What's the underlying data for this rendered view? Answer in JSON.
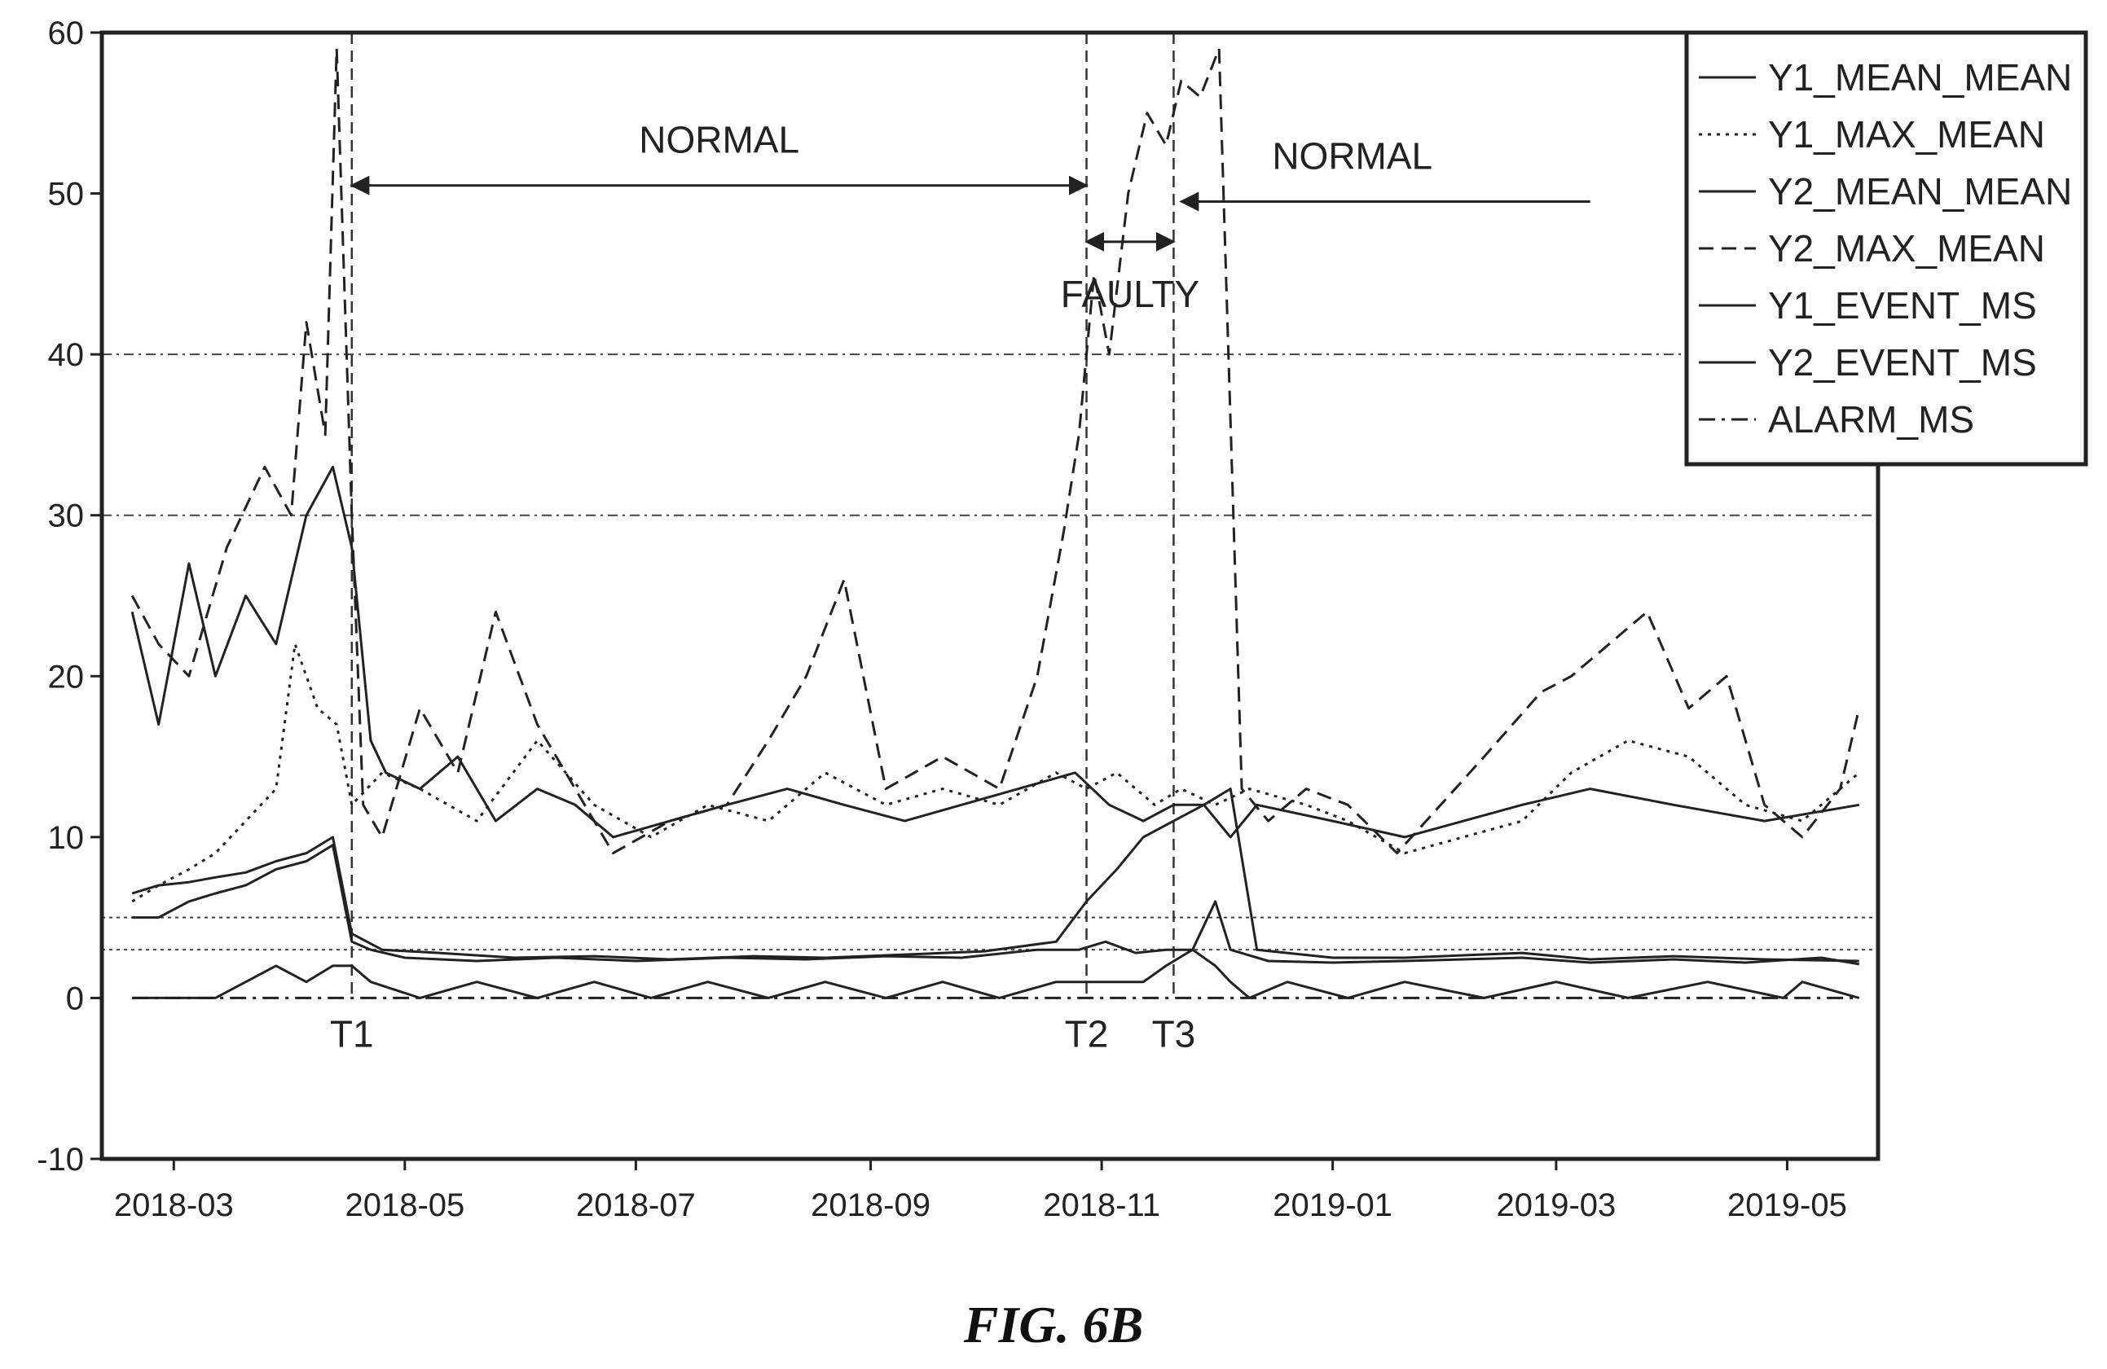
{
  "caption": "FIG. 6B",
  "chart_data": {
    "type": "line",
    "title": "",
    "xlabel": "",
    "ylabel": "",
    "ylim": [
      -10,
      60
    ],
    "yticks": [
      -10,
      0,
      10,
      20,
      30,
      40,
      50,
      60
    ],
    "xticks": [
      "2018-03",
      "2018-05",
      "2018-07",
      "2018-09",
      "2018-11",
      "2019-01",
      "2019-03",
      "2019-05"
    ],
    "xlim": [
      "2018-02-10",
      "2019-05-25"
    ],
    "grid": "horizontal dash-dot at 30 and 40; dotted threshold lines at 3 and 5",
    "legend_position": "top-right",
    "legend": [
      "Y1_MEAN_MEAN",
      "Y1_MAX_MEAN",
      "Y2_MEAN_MEAN",
      "Y2_MAX_MEAN",
      "Y1_EVENT_MS",
      "Y2_EVENT_MS",
      "ALARM_MS"
    ],
    "threshold_lines": [
      5,
      3
    ],
    "markers": [
      {
        "label": "T1",
        "date": "2018-04-17"
      },
      {
        "label": "T2",
        "date": "2018-10-28"
      },
      {
        "label": "T3",
        "date": "2018-11-20"
      }
    ],
    "annotations": [
      {
        "text": "NORMAL",
        "from": "2018-04-17",
        "to": "2018-10-28",
        "y": 50.5
      },
      {
        "text": "FAULTY",
        "from": "2018-10-28",
        "to": "2018-11-20",
        "y": 47
      },
      {
        "text": "NORMAL",
        "from": "2018-11-22",
        "to": "2019-03-10",
        "y": 49.5
      }
    ],
    "series": [
      {
        "name": "Y1_MEAN_MEAN",
        "style": "solid",
        "x": [
          "2018-02-18",
          "2018-02-25",
          "2018-03-05",
          "2018-03-12",
          "2018-03-20",
          "2018-03-28",
          "2018-04-05",
          "2018-04-12",
          "2018-04-17",
          "2018-04-22",
          "2018-05-01",
          "2018-05-20",
          "2018-06-10",
          "2018-07-01",
          "2018-07-25",
          "2018-08-15",
          "2018-09-05",
          "2018-09-25",
          "2018-10-15",
          "2018-10-26",
          "2018-11-02",
          "2018-11-10",
          "2018-11-18",
          "2018-11-25",
          "2018-12-01",
          "2018-12-05",
          "2018-12-15",
          "2019-01-01",
          "2019-01-20",
          "2019-02-20",
          "2019-03-10",
          "2019-04-01",
          "2019-04-20",
          "2019-05-10",
          "2019-05-20"
        ],
        "y": [
          5,
          5,
          6,
          6.5,
          7,
          8,
          8.5,
          9.5,
          3.5,
          3,
          2.5,
          2.3,
          2.5,
          2.3,
          2.5,
          2.4,
          2.6,
          2.5,
          3,
          3,
          3.5,
          2.8,
          3,
          3,
          6,
          3,
          2.3,
          2.2,
          2.3,
          2.5,
          2.2,
          2.4,
          2.2,
          2.5,
          2.1
        ]
      },
      {
        "name": "Y1_MAX_MEAN",
        "style": "dotted",
        "x": [
          "2018-02-18",
          "2018-02-25",
          "2018-03-05",
          "2018-03-12",
          "2018-03-20",
          "2018-03-28",
          "2018-04-02",
          "2018-04-08",
          "2018-04-13",
          "2018-04-17",
          "2018-04-25",
          "2018-05-05",
          "2018-05-20",
          "2018-06-05",
          "2018-06-20",
          "2018-07-05",
          "2018-07-20",
          "2018-08-05",
          "2018-08-20",
          "2018-09-05",
          "2018-09-20",
          "2018-10-05",
          "2018-10-20",
          "2018-10-28",
          "2018-11-05",
          "2018-11-15",
          "2018-11-22",
          "2018-12-01",
          "2018-12-10",
          "2018-12-25",
          "2019-01-05",
          "2019-01-20",
          "2019-02-20",
          "2019-03-05",
          "2019-03-20",
          "2019-04-05",
          "2019-04-20",
          "2019-05-05",
          "2019-05-20"
        ],
        "y": [
          6,
          7,
          8,
          9,
          11,
          13,
          22,
          18,
          17,
          12,
          14,
          13,
          11,
          16,
          12,
          10,
          12,
          11,
          14,
          12,
          13,
          12,
          14,
          13,
          14,
          12,
          13,
          12,
          13,
          12,
          11,
          9,
          11,
          14,
          16,
          15,
          12,
          11,
          14
        ]
      },
      {
        "name": "Y2_MEAN_MEAN",
        "style": "solid",
        "x": [
          "2018-02-18",
          "2018-02-25",
          "2018-03-05",
          "2018-03-12",
          "2018-03-20",
          "2018-03-28",
          "2018-04-05",
          "2018-04-12",
          "2018-04-17",
          "2018-04-25",
          "2018-05-10",
          "2018-05-30",
          "2018-06-20",
          "2018-07-10",
          "2018-08-01",
          "2018-08-20",
          "2018-09-10",
          "2018-10-01",
          "2018-10-20",
          "2018-10-28",
          "2018-11-05",
          "2018-11-12",
          "2018-11-20",
          "2018-11-28",
          "2018-12-05",
          "2018-12-12",
          "2019-01-01",
          "2019-01-20",
          "2019-02-20",
          "2019-03-10",
          "2019-04-01",
          "2019-04-25",
          "2019-05-20"
        ],
        "y": [
          6.5,
          7,
          7.2,
          7.5,
          7.8,
          8.5,
          9,
          10,
          4,
          3,
          2.8,
          2.5,
          2.6,
          2.4,
          2.6,
          2.5,
          2.7,
          2.9,
          3.5,
          6,
          8,
          10,
          11,
          12,
          13,
          3,
          2.5,
          2.5,
          2.8,
          2.4,
          2.6,
          2.4,
          2.3
        ]
      },
      {
        "name": "Y2_MAX_MEAN",
        "style": "dashed",
        "x": [
          "2018-02-18",
          "2018-02-25",
          "2018-03-05",
          "2018-03-15",
          "2018-03-25",
          "2018-04-01",
          "2018-04-05",
          "2018-04-10",
          "2018-04-13",
          "2018-04-17",
          "2018-04-20",
          "2018-04-25",
          "2018-05-05",
          "2018-05-15",
          "2018-05-25",
          "2018-06-05",
          "2018-06-15",
          "2018-06-25",
          "2018-07-10",
          "2018-07-25",
          "2018-08-05",
          "2018-08-15",
          "2018-08-25",
          "2018-09-05",
          "2018-09-20",
          "2018-10-05",
          "2018-10-15",
          "2018-10-22",
          "2018-10-26",
          "2018-10-30",
          "2018-11-03",
          "2018-11-08",
          "2018-11-13",
          "2018-11-18",
          "2018-11-22",
          "2018-11-27",
          "2018-12-02",
          "2018-12-08",
          "2018-12-15",
          "2018-12-25",
          "2019-01-05",
          "2019-01-18",
          "2019-02-10",
          "2019-02-25",
          "2019-03-05",
          "2019-03-15",
          "2019-03-25",
          "2019-04-05",
          "2019-04-15",
          "2019-04-25",
          "2019-05-05",
          "2019-05-15",
          "2019-05-20"
        ],
        "y": [
          25,
          22,
          20,
          28,
          33,
          30,
          42,
          35,
          59,
          30,
          12,
          10,
          18,
          14,
          24,
          17,
          13,
          9,
          11,
          12,
          16,
          20,
          26,
          13,
          15,
          13,
          20,
          29,
          35,
          45,
          40,
          50,
          55,
          53,
          57,
          56,
          59,
          13,
          11,
          13,
          12,
          9,
          15,
          19,
          20,
          22,
          24,
          18,
          20,
          12,
          10,
          13,
          18
        ]
      },
      {
        "name": "Y1_EVENT_MS",
        "style": "solid",
        "x": [
          "2018-02-18",
          "2018-02-25",
          "2018-03-05",
          "2018-03-12",
          "2018-03-20",
          "2018-03-28",
          "2018-04-05",
          "2018-04-12",
          "2018-04-17",
          "2018-04-22",
          "2018-04-26",
          "2018-05-05",
          "2018-05-15",
          "2018-05-25",
          "2018-06-05",
          "2018-06-15",
          "2018-06-25",
          "2018-07-10",
          "2018-07-25",
          "2018-08-10",
          "2018-08-25",
          "2018-09-10",
          "2018-09-25",
          "2018-10-10",
          "2018-10-25",
          "2018-11-03",
          "2018-11-12",
          "2018-11-20",
          "2018-11-28",
          "2018-12-05",
          "2018-12-12",
          "2019-01-01",
          "2019-01-20",
          "2019-02-20",
          "2019-03-10",
          "2019-04-01",
          "2019-04-25",
          "2019-05-20"
        ],
        "y": [
          24,
          17,
          27,
          20,
          25,
          22,
          30,
          33,
          28,
          16,
          14,
          13,
          15,
          11,
          13,
          12,
          10,
          11,
          12,
          13,
          12,
          11,
          12,
          13,
          14,
          12,
          11,
          12,
          12,
          10,
          12,
          11,
          10,
          12,
          13,
          12,
          11,
          12
        ]
      },
      {
        "name": "Y2_EVENT_MS",
        "style": "solid",
        "x": [
          "2018-02-18",
          "2018-03-01",
          "2018-03-12",
          "2018-03-20",
          "2018-03-28",
          "2018-04-05",
          "2018-04-12",
          "2018-04-17",
          "2018-04-22",
          "2018-05-05",
          "2018-05-20",
          "2018-06-05",
          "2018-06-20",
          "2018-07-05",
          "2018-07-20",
          "2018-08-05",
          "2018-08-20",
          "2018-09-05",
          "2018-09-20",
          "2018-10-05",
          "2018-10-20",
          "2018-10-28",
          "2018-11-05",
          "2018-11-12",
          "2018-11-18",
          "2018-11-25",
          "2018-12-01",
          "2018-12-05",
          "2018-12-10",
          "2018-12-20",
          "2019-01-05",
          "2019-01-20",
          "2019-02-10",
          "2019-03-01",
          "2019-03-20",
          "2019-04-10",
          "2019-04-30",
          "2019-05-05",
          "2019-05-20"
        ],
        "y": [
          0,
          0,
          0,
          1,
          2,
          1,
          2,
          2,
          1,
          0,
          1,
          0,
          1,
          0,
          1,
          0,
          1,
          0,
          1,
          0,
          1,
          1,
          1,
          1,
          2,
          3,
          2,
          1,
          0,
          1,
          0,
          1,
          0,
          1,
          0,
          1,
          0,
          1,
          0
        ]
      },
      {
        "name": "ALARM_MS",
        "style": "dash-dot",
        "x": [
          "2018-02-18",
          "2018-03-28",
          "2018-04-17",
          "2018-10-28",
          "2018-11-20",
          "2018-12-05",
          "2019-05-20"
        ],
        "y": [
          0,
          0,
          0,
          0,
          0,
          0,
          0
        ]
      }
    ]
  }
}
